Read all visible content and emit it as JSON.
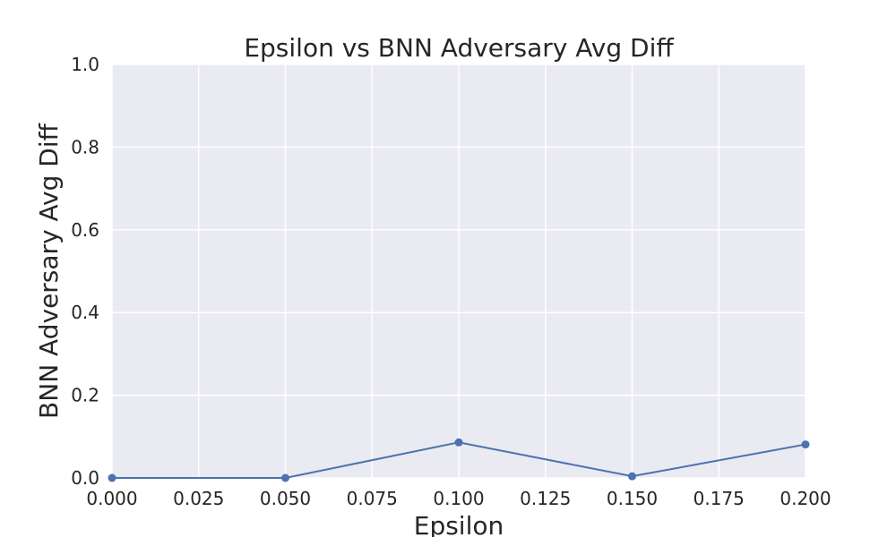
{
  "chart_data": {
    "type": "line",
    "title": "Epsilon vs BNN Adversary Avg Diff",
    "xlabel": "Epsilon",
    "ylabel": "BNN Adversary Avg Diff",
    "xlim": [
      0.0,
      0.2
    ],
    "ylim": [
      0.0,
      1.0
    ],
    "xticks": [
      "0.000",
      "0.025",
      "0.050",
      "0.075",
      "0.100",
      "0.125",
      "0.150",
      "0.175",
      "0.200"
    ],
    "yticks": [
      "0.0",
      "0.2",
      "0.4",
      "0.6",
      "0.8",
      "1.0"
    ],
    "grid": true,
    "series": [
      {
        "x": [
          0.0,
          0.05,
          0.1,
          0.15,
          0.2
        ],
        "y": [
          0.0,
          0.0,
          0.086,
          0.004,
          0.081
        ],
        "color": "#4c72b0"
      }
    ],
    "background": "#eaeaf2"
  }
}
